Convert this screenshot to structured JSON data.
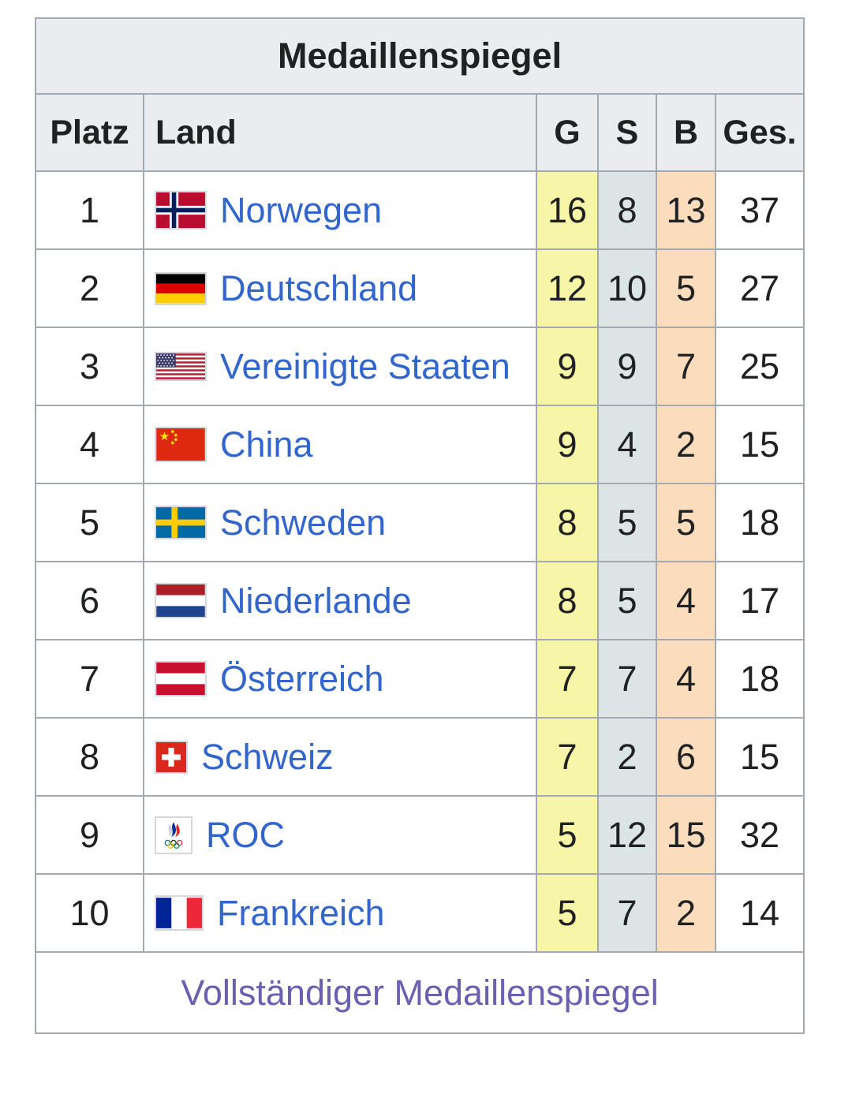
{
  "title": "Medaillenspiegel",
  "columns": {
    "rank": "Platz",
    "country": "Land",
    "gold": "G",
    "silver": "S",
    "bronze": "B",
    "total": "Ges."
  },
  "rows": [
    {
      "rank": "1",
      "country": "Norwegen",
      "flag": "norway-flag",
      "gold": "16",
      "silver": "8",
      "bronze": "13",
      "total": "37"
    },
    {
      "rank": "2",
      "country": "Deutschland",
      "flag": "germany-flag",
      "gold": "12",
      "silver": "10",
      "bronze": "5",
      "total": "27"
    },
    {
      "rank": "3",
      "country": "Vereinigte Staaten",
      "flag": "usa-flag",
      "gold": "9",
      "silver": "9",
      "bronze": "7",
      "total": "25"
    },
    {
      "rank": "4",
      "country": "China",
      "flag": "china-flag",
      "gold": "9",
      "silver": "4",
      "bronze": "2",
      "total": "15"
    },
    {
      "rank": "5",
      "country": "Schweden",
      "flag": "sweden-flag",
      "gold": "8",
      "silver": "5",
      "bronze": "5",
      "total": "18"
    },
    {
      "rank": "6",
      "country": "Niederlande",
      "flag": "netherlands-flag",
      "gold": "8",
      "silver": "5",
      "bronze": "4",
      "total": "17"
    },
    {
      "rank": "7",
      "country": "Österreich",
      "flag": "austria-flag",
      "gold": "7",
      "silver": "7",
      "bronze": "4",
      "total": "18"
    },
    {
      "rank": "8",
      "country": "Schweiz",
      "flag": "switzerland-flag",
      "gold": "7",
      "silver": "2",
      "bronze": "6",
      "total": "15"
    },
    {
      "rank": "9",
      "country": "ROC",
      "flag": "roc-flag",
      "gold": "5",
      "silver": "12",
      "bronze": "15",
      "total": "32"
    },
    {
      "rank": "10",
      "country": "Frankreich",
      "flag": "france-flag",
      "gold": "5",
      "silver": "7",
      "bronze": "2",
      "total": "14"
    }
  ],
  "footer": {
    "link_label": "Vollständiger Medaillenspiegel"
  },
  "colors": {
    "gold_bg": "#F7F6A8",
    "silver_bg": "#DCE5E5",
    "bronze_bg": "#FBDDBD",
    "header_bg": "#EAECF0",
    "border": "#A2A9B1",
    "link": "#3366CC",
    "visited_link": "#6A60B0"
  }
}
